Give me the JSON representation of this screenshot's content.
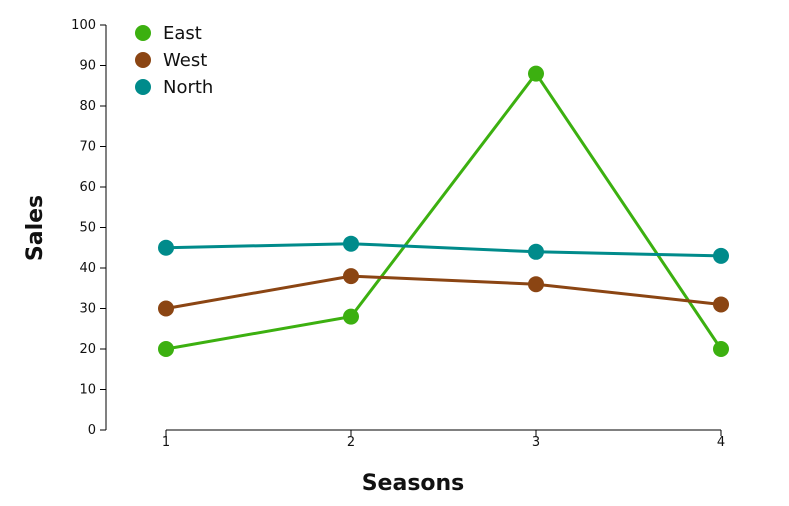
{
  "chart_data": {
    "type": "line",
    "title": "",
    "xlabel": "Seasons",
    "ylabel": "Sales",
    "x": [
      1,
      2,
      3,
      4
    ],
    "ylim": [
      0,
      100
    ],
    "yticks": [
      0,
      10,
      20,
      30,
      40,
      50,
      60,
      70,
      80,
      90,
      100
    ],
    "grid": false,
    "legend_position": "top-left",
    "series": [
      {
        "name": "East",
        "color": "#3cb010",
        "values": [
          20,
          28,
          88,
          20
        ]
      },
      {
        "name": "West",
        "color": "#8b4513",
        "values": [
          30,
          38,
          36,
          31
        ]
      },
      {
        "name": "North",
        "color": "#008b8b",
        "values": [
          45,
          46,
          44,
          43
        ]
      }
    ]
  }
}
